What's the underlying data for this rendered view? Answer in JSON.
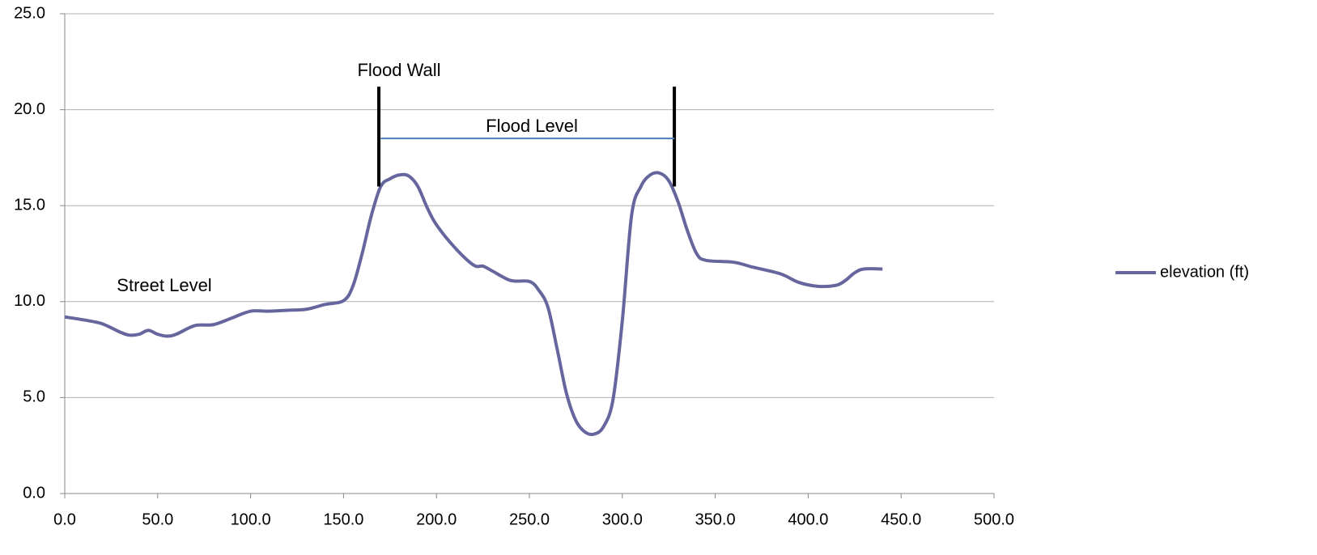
{
  "chart_data": {
    "type": "line",
    "x": [
      0,
      10,
      20,
      30,
      35,
      40,
      45,
      50,
      55,
      60,
      70,
      80,
      90,
      100,
      110,
      120,
      130,
      140,
      150,
      155,
      160,
      165,
      170,
      175,
      180,
      185,
      190,
      195,
      200,
      210,
      220,
      225,
      230,
      240,
      250,
      255,
      260,
      265,
      270,
      275,
      280,
      285,
      290,
      295,
      300,
      305,
      310,
      315,
      320,
      325,
      330,
      335,
      340,
      345,
      360,
      370,
      385,
      395,
      405,
      415,
      420,
      425,
      430,
      440
    ],
    "series": [
      {
        "name": "elevation (ft)",
        "color": "#66669e",
        "values": [
          9.2,
          9.05,
          8.85,
          8.4,
          8.25,
          8.3,
          8.5,
          8.3,
          8.2,
          8.3,
          8.75,
          8.8,
          9.15,
          9.5,
          9.5,
          9.55,
          9.6,
          9.85,
          10.05,
          10.8,
          12.5,
          14.5,
          16.0,
          16.4,
          16.6,
          16.55,
          16.0,
          14.9,
          14.0,
          12.8,
          11.9,
          11.85,
          11.6,
          11.1,
          11.05,
          10.6,
          9.7,
          7.5,
          5.2,
          3.8,
          3.2,
          3.1,
          3.5,
          4.9,
          9.0,
          14.5,
          16.0,
          16.6,
          16.7,
          16.3,
          15.2,
          13.7,
          12.5,
          12.15,
          12.05,
          11.8,
          11.45,
          11.0,
          10.8,
          10.85,
          11.1,
          11.5,
          11.7,
          11.7
        ]
      }
    ],
    "xlim": [
      0,
      500
    ],
    "xticks": [
      {
        "value": 0,
        "label": "0.0"
      },
      {
        "value": 50,
        "label": "50.0"
      },
      {
        "value": 100,
        "label": "100.0"
      },
      {
        "value": 150,
        "label": "150.0"
      },
      {
        "value": 200,
        "label": "200.0"
      },
      {
        "value": 250,
        "label": "250.0"
      },
      {
        "value": 300,
        "label": "300.0"
      },
      {
        "value": 350,
        "label": "350.0"
      },
      {
        "value": 400,
        "label": "400.0"
      },
      {
        "value": 450,
        "label": "450.0"
      },
      {
        "value": 500,
        "label": "500.0"
      }
    ],
    "ylim": [
      0,
      25
    ],
    "yticks": [
      {
        "value": 0,
        "label": "0.0"
      },
      {
        "value": 5,
        "label": "5.0"
      },
      {
        "value": 10,
        "label": "10.0"
      },
      {
        "value": 15,
        "label": "15.0"
      },
      {
        "value": 20,
        "label": "20.0"
      },
      {
        "value": 25,
        "label": "25.0"
      }
    ],
    "grid": true,
    "legend": "right",
    "annotations": [
      "Flood Wall",
      "Flood Level",
      "Street Level"
    ],
    "flood_walls": {
      "x": [
        169,
        328
      ],
      "y": [
        16,
        21.2
      ],
      "color": "#000000"
    },
    "flood_level": {
      "x": [
        170,
        328
      ],
      "y": 18.5,
      "color": "#4a7ebb"
    }
  }
}
